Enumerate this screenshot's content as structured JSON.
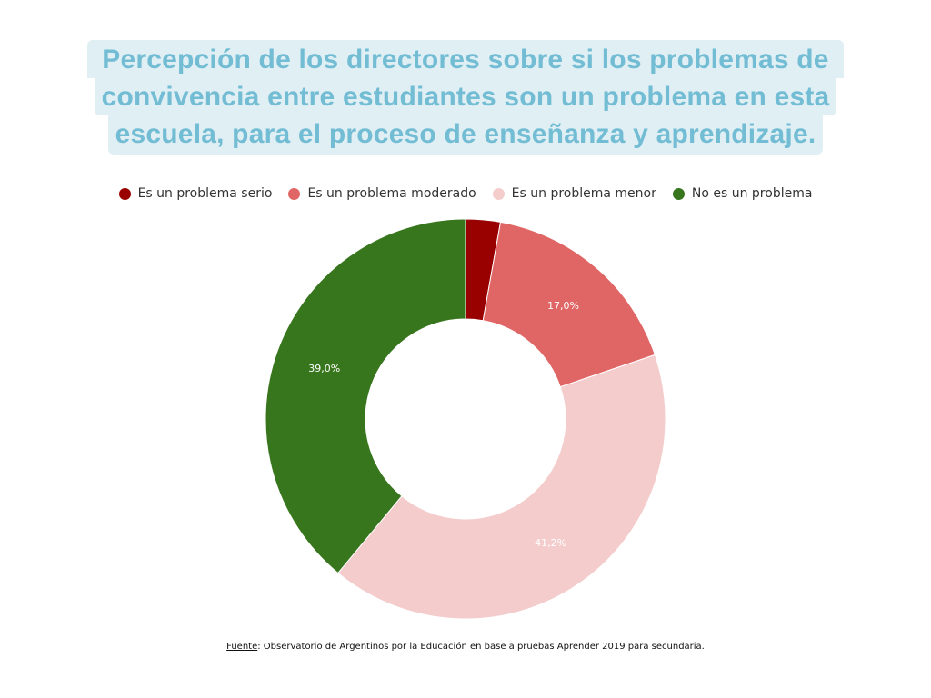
{
  "title": {
    "lines": [
      "Percepción de los directores sobre si los problemas de",
      "convivencia entre estudiantes son un problema en esta",
      "escuela, para el proceso de enseñanza y aprendizaje."
    ]
  },
  "chart_data": {
    "type": "pie",
    "donut": true,
    "title": "Percepción de los directores sobre si los problemas de convivencia entre estudiantes son un problema en esta escuela, para el proceso de enseñanza y aprendizaje.",
    "legend_position": "top",
    "series": [
      {
        "name": "Es un problema serio",
        "value": 2.8,
        "label": "",
        "color": "#990000"
      },
      {
        "name": "Es un problema moderado",
        "value": 17.0,
        "label": "17,0%",
        "color": "#e06666"
      },
      {
        "name": "Es un problema menor",
        "value": 41.2,
        "label": "41,2%",
        "color": "#f4cccc"
      },
      {
        "name": "No es un problema",
        "value": 39.0,
        "label": "39,0%",
        "color": "#38761d"
      }
    ]
  },
  "source": {
    "prefix": "Fuente",
    "text": ": Observatorio de Argentinos por la Educación en base a pruebas Aprender 2019 para secundaria."
  }
}
